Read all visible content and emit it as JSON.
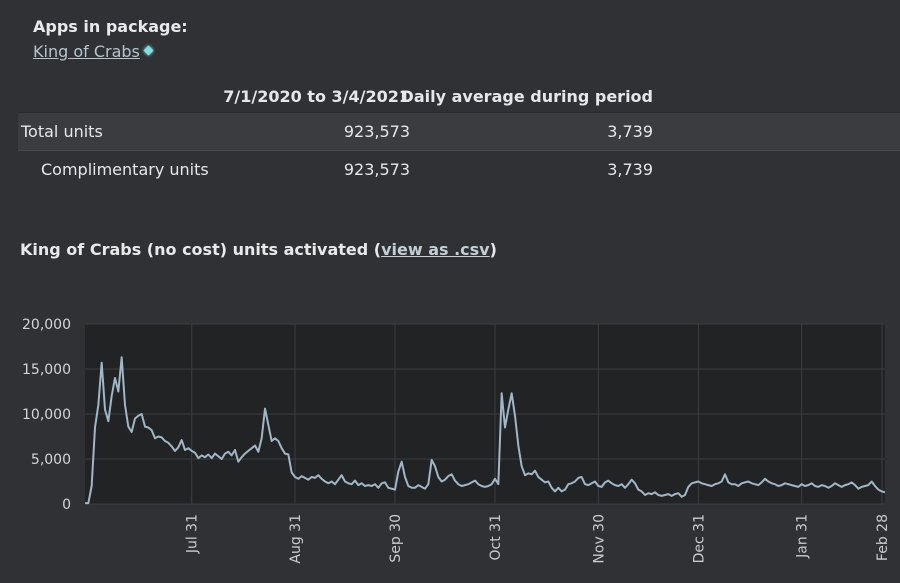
{
  "header": {
    "apps_heading": "Apps in package:",
    "app_link": "King of Crabs",
    "app_link_icon": "diamond-icon"
  },
  "table": {
    "col_period": "7/1/2020 to 3/4/2021",
    "col_avg": "Daily average during period",
    "rows": [
      {
        "label": "Total units",
        "period": "923,573",
        "avg": "3,739"
      },
      {
        "label": "Complimentary units",
        "period": "923,573",
        "avg": "3,739"
      }
    ]
  },
  "chart_section": {
    "title_prefix": "King of Crabs (no cost) units activated (",
    "csv_link": "view as .csv",
    "title_suffix": ")"
  },
  "colors": {
    "background": "#2f3134",
    "plot_background": "#222325",
    "line": "#9fb7c6",
    "grid": "#3b3d40"
  },
  "chart_data": {
    "type": "line",
    "title": "King of Crabs (no cost) units activated",
    "xlabel": "",
    "ylabel": "",
    "ylim": [
      0,
      20000
    ],
    "yticks": [
      0,
      5000,
      10000,
      15000,
      20000
    ],
    "ytick_labels": [
      "0",
      "5,000",
      "10,000",
      "15,000",
      "20,000"
    ],
    "xlim_days": [
      0,
      240
    ],
    "xticks": [
      {
        "day": 32,
        "label": "Jul 31"
      },
      {
        "day": 63,
        "label": "Aug 31"
      },
      {
        "day": 93,
        "label": "Sep 30"
      },
      {
        "day": 123,
        "label": "Oct 31"
      },
      {
        "day": 154,
        "label": "Nov 30"
      },
      {
        "day": 184,
        "label": "Dec 31"
      },
      {
        "day": 215,
        "label": "Jan 31"
      },
      {
        "day": 243,
        "label": "Feb 28"
      }
    ],
    "grid": true,
    "series": [
      {
        "name": "Units activated",
        "x": [
          0,
          1,
          2,
          3,
          4,
          5,
          6,
          7,
          8,
          9,
          10,
          11,
          12,
          13,
          14,
          15,
          16,
          17,
          18,
          19,
          20,
          21,
          22,
          23,
          24,
          25,
          26,
          27,
          28,
          29,
          30,
          31,
          32,
          33,
          34,
          35,
          36,
          37,
          38,
          39,
          40,
          41,
          42,
          43,
          44,
          45,
          46,
          47,
          48,
          49,
          50,
          51,
          52,
          53,
          54,
          55,
          56,
          57,
          58,
          59,
          60,
          61,
          62,
          63,
          64,
          65,
          66,
          67,
          68,
          69,
          70,
          71,
          72,
          73,
          74,
          75,
          76,
          77,
          78,
          79,
          80,
          81,
          82,
          83,
          84,
          85,
          86,
          87,
          88,
          89,
          90,
          91,
          92,
          93,
          94,
          95,
          96,
          97,
          98,
          99,
          100,
          101,
          102,
          103,
          104,
          105,
          106,
          107,
          108,
          109,
          110,
          111,
          112,
          113,
          114,
          115,
          116,
          117,
          118,
          119,
          120,
          121,
          122,
          123,
          124,
          125,
          126,
          127,
          128,
          129,
          130,
          131,
          132,
          133,
          134,
          135,
          136,
          137,
          138,
          139,
          140,
          141,
          142,
          143,
          144,
          145,
          146,
          147,
          148,
          149,
          150,
          151,
          152,
          153,
          154,
          155,
          156,
          157,
          158,
          159,
          160,
          161,
          162,
          163,
          164,
          165,
          166,
          167,
          168,
          169,
          170,
          171,
          172,
          173,
          174,
          175,
          176,
          177,
          178,
          179,
          180,
          181,
          182,
          183,
          184,
          185,
          186,
          187,
          188,
          189,
          190,
          191,
          192,
          193,
          194,
          195,
          196,
          197,
          198,
          199,
          200,
          201,
          202,
          203,
          204,
          205,
          206,
          207,
          208,
          209,
          210,
          211,
          212,
          213,
          214,
          215,
          216,
          217,
          218,
          219,
          220,
          221,
          222,
          223,
          224,
          225,
          226,
          227,
          228,
          229,
          230,
          231,
          232,
          233,
          234,
          235,
          236,
          237,
          238,
          239,
          240
        ],
        "values": [
          100,
          100,
          2000,
          8500,
          11000,
          15700,
          10500,
          9200,
          12000,
          14000,
          12500,
          16300,
          11000,
          8600,
          8000,
          9500,
          9800,
          10000,
          8600,
          8500,
          8200,
          7300,
          7500,
          7400,
          7000,
          6800,
          6400,
          5900,
          6300,
          7100,
          6000,
          6200,
          5900,
          5700,
          5100,
          5400,
          5200,
          5500,
          5100,
          5600,
          5300,
          5000,
          5600,
          5800,
          5400,
          6000,
          4700,
          5200,
          5600,
          5900,
          6200,
          6500,
          5800,
          7300,
          10600,
          8800,
          7000,
          7300,
          7000,
          6200,
          5600,
          5500,
          3500,
          3000,
          2800,
          3100,
          2900,
          2700,
          3000,
          2900,
          3200,
          2800,
          2500,
          2300,
          2500,
          2200,
          2700,
          3200,
          2500,
          2300,
          2200,
          2600,
          2100,
          2300,
          2000,
          2100,
          2000,
          2200,
          1800,
          2300,
          2400,
          1800,
          1700,
          1600,
          3600,
          4700,
          3000,
          2000,
          1800,
          1800,
          2100,
          1900,
          1700,
          2200,
          4900,
          4200,
          3000,
          2500,
          2700,
          3100,
          3300,
          2600,
          2200,
          2000,
          2100,
          2200,
          2400,
          2600,
          2200,
          2000,
          1900,
          2000,
          2200,
          2800,
          2200,
          12300,
          8500,
          10500,
          12300,
          9800,
          6500,
          4200,
          3200,
          3400,
          3300,
          3700,
          3000,
          2700,
          2400,
          2500,
          1800,
          1400,
          1800,
          1400,
          1600,
          2200,
          2300,
          2500,
          2900,
          3000,
          2200,
          2100,
          2300,
          2500,
          2000,
          1900,
          2400,
          2600,
          2300,
          2100,
          2000,
          2200,
          1800,
          2200,
          2700,
          2300,
          1600,
          1400,
          1000,
          1200,
          1100,
          1300,
          1000,
          900,
          1000,
          1100,
          900,
          1100,
          1200,
          800,
          1000,
          1900,
          2300,
          2400,
          2500,
          2300,
          2200,
          2100,
          2000,
          2200,
          2300,
          2500,
          3300,
          2400,
          2200,
          2200,
          2000,
          2300,
          2400,
          2500,
          2300,
          2200,
          2100,
          2400,
          2800,
          2500,
          2300,
          2200,
          2000,
          2100,
          2300,
          2200,
          2100,
          2000,
          1900,
          2200,
          2000,
          2100,
          2300,
          2000,
          1900,
          2100,
          2000,
          1800,
          2000,
          2300,
          2100,
          1900,
          2100,
          2200,
          2400,
          2100,
          1700,
          1900,
          2000,
          2100,
          2500,
          2000,
          1600,
          1400,
          1300
        ]
      }
    ]
  }
}
